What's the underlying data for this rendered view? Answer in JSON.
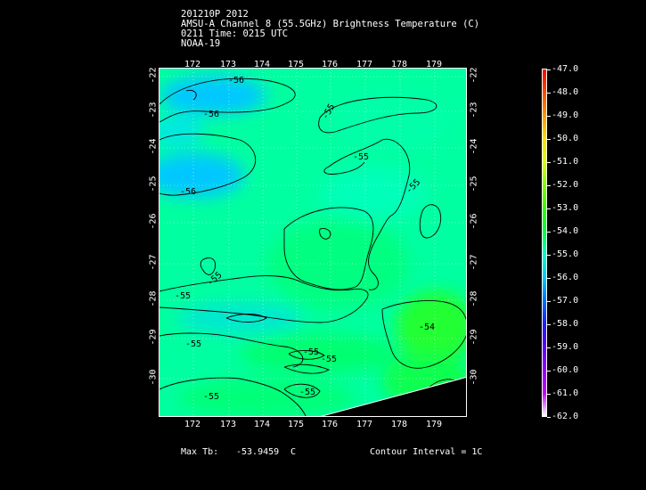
{
  "header": {
    "line1": "201210P 2012",
    "line2": "AMSU-A Channel 8 (55.5GHz) Brightness Temperature (C)",
    "line3": "0211 Time: 0215 UTC",
    "line4": "NOAA-19"
  },
  "axes": {
    "lon_labels": [
      "172",
      "173",
      "174",
      "175",
      "176",
      "177",
      "178",
      "179"
    ],
    "lat_labels": [
      "-22",
      "-23",
      "-24",
      "-25",
      "-26",
      "-27",
      "-28",
      "-29",
      "-30"
    ]
  },
  "contour_labels": [
    {
      "text": "-56"
    },
    {
      "text": "-56"
    },
    {
      "text": "-56"
    },
    {
      "text": "-55"
    },
    {
      "text": "-55"
    },
    {
      "text": "-55"
    },
    {
      "text": "-55"
    },
    {
      "text": "-55"
    },
    {
      "text": "-55"
    },
    {
      "text": "-55"
    },
    {
      "text": "-54"
    },
    {
      "text": "-55"
    },
    {
      "text": "-55"
    },
    {
      "text": "-55"
    }
  ],
  "colorbar": {
    "labels": [
      "-47.0",
      "-48.0",
      "-49.0",
      "-50.0",
      "-51.0",
      "-52.0",
      "-53.0",
      "-54.0",
      "-55.0",
      "-56.0",
      "-57.0",
      "-58.0",
      "-59.0",
      "-60.0",
      "-61.0",
      "-62.0"
    ],
    "colors": [
      "#ff0000",
      "#ff4a00",
      "#ff9600",
      "#ffdc00",
      "#d8ff00",
      "#7cff00",
      "#2dff00",
      "#00ff3a",
      "#00ffc0",
      "#00c8ff",
      "#0070ff",
      "#1a20ff",
      "#5a00ff",
      "#9000ff",
      "#c000ff",
      "#ffffff"
    ]
  },
  "footer": {
    "max_label": "Max Tb:",
    "max_value": "-53.9459",
    "max_unit": "C",
    "contour_interval": "Contour Interval = 1C"
  }
}
